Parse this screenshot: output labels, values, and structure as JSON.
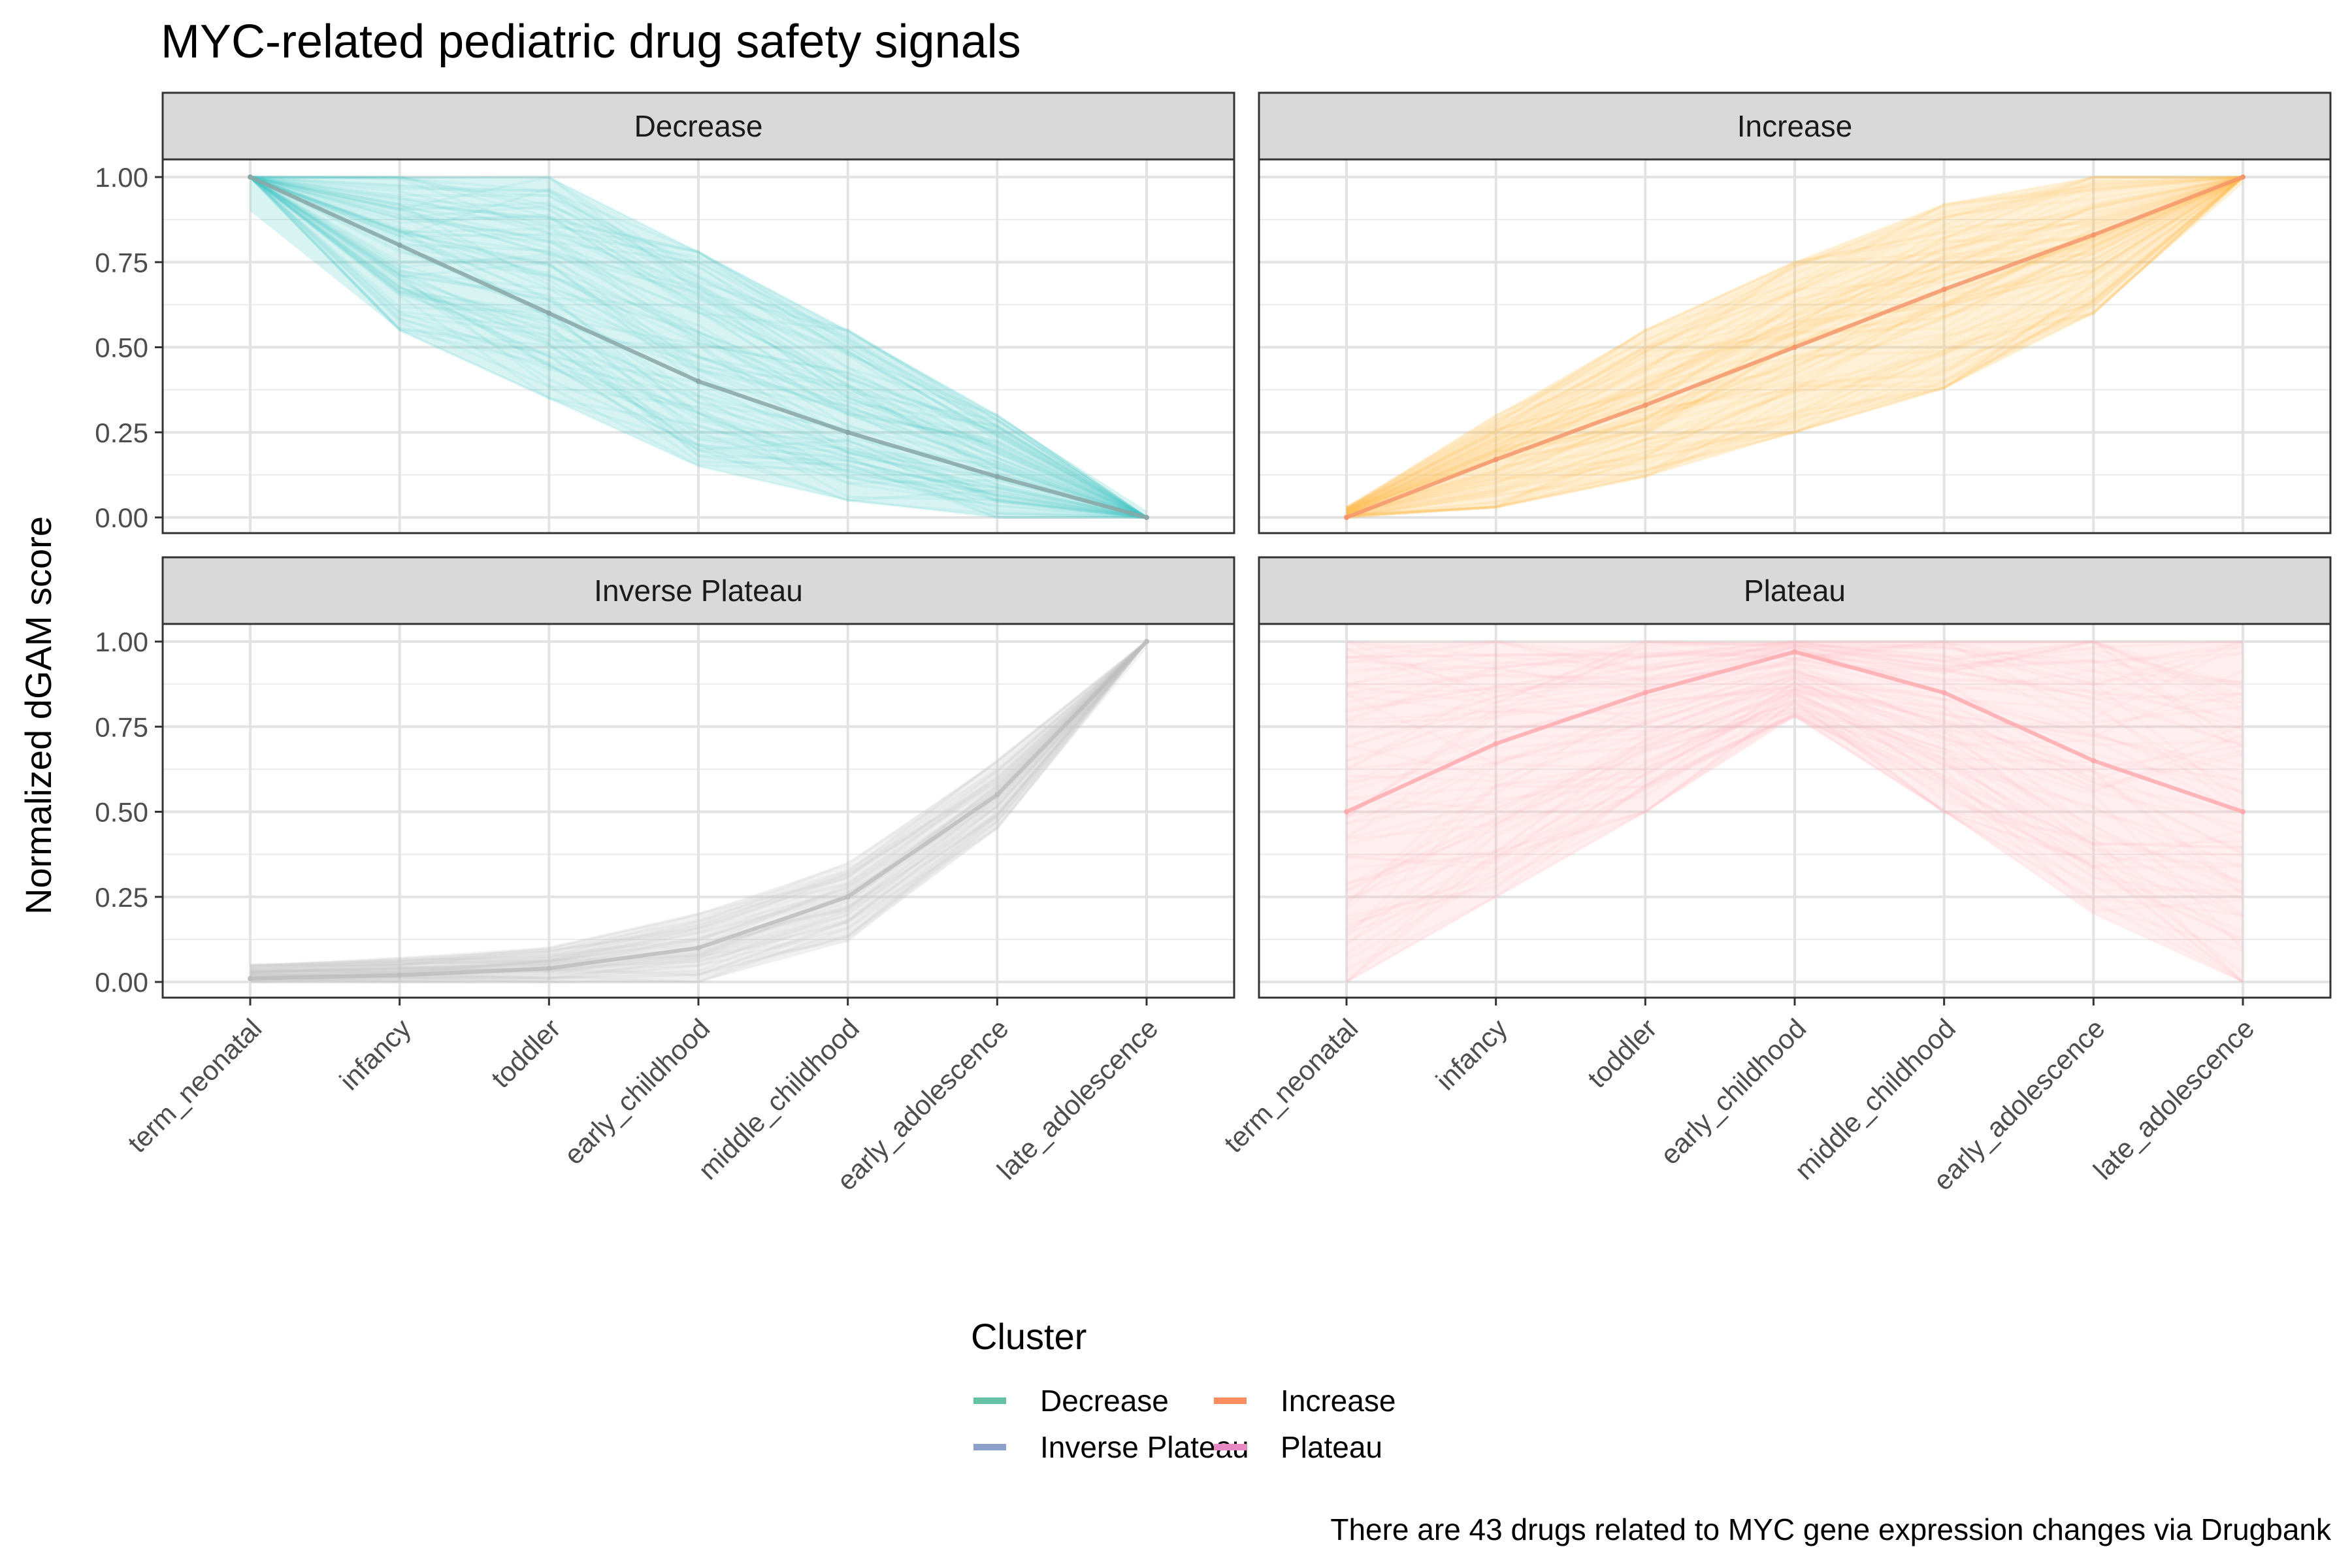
{
  "chart_data": {
    "type": "line",
    "title": "MYC-related pediatric drug safety signals",
    "ylabel": "Normalized dGAM score",
    "xlabel": "",
    "caption": "There are 43 drugs related to MYC gene expression changes via Drugbank",
    "ylim": [
      0,
      1
    ],
    "yticks": [
      "0.00",
      "0.25",
      "0.50",
      "0.75",
      "1.00"
    ],
    "categories": [
      "term_neonatal",
      "infancy",
      "toddler",
      "early_childhood",
      "middle_childhood",
      "early_adolescence",
      "late_adolescence"
    ],
    "grid": true,
    "legend": {
      "title": "Cluster",
      "placement": "bottom",
      "entries": [
        {
          "name": "Decrease",
          "color": "#66C2A5"
        },
        {
          "name": "Inverse Plateau",
          "color": "#8DA0CB"
        },
        {
          "name": "Increase",
          "color": "#FC8D62"
        },
        {
          "name": "Plateau",
          "color": "#E78AC3"
        }
      ]
    },
    "panels": [
      {
        "name": "Decrease",
        "line_color": "#48C9C4",
        "mean_color": "#8AA6A6",
        "mean": [
          1.0,
          0.8,
          0.6,
          0.4,
          0.25,
          0.12,
          0.0
        ],
        "band_low": [
          0.9,
          0.55,
          0.35,
          0.15,
          0.05,
          0.0,
          0.0
        ],
        "band_high": [
          1.0,
          1.0,
          1.0,
          0.78,
          0.55,
          0.3,
          0.02
        ]
      },
      {
        "name": "Increase",
        "line_color": "#FFC04D",
        "mean_color": "#F4956B",
        "mean": [
          0.0,
          0.17,
          0.33,
          0.5,
          0.67,
          0.83,
          1.0
        ],
        "band_low": [
          0.0,
          0.03,
          0.12,
          0.25,
          0.38,
          0.6,
          0.98
        ],
        "band_high": [
          0.03,
          0.3,
          0.55,
          0.75,
          0.92,
          1.0,
          1.0
        ]
      },
      {
        "name": "Inverse Plateau",
        "line_color": "#C7C7C7",
        "mean_color": "#BDBDBD",
        "mean": [
          0.01,
          0.02,
          0.04,
          0.1,
          0.25,
          0.55,
          1.0
        ],
        "band_low": [
          0.0,
          0.0,
          0.0,
          0.0,
          0.12,
          0.45,
          0.98
        ],
        "band_high": [
          0.05,
          0.07,
          0.1,
          0.2,
          0.35,
          0.65,
          1.0
        ]
      },
      {
        "name": "Plateau",
        "line_color": "#FFB6B9",
        "mean_color": "#FFAAAE",
        "mean": [
          0.5,
          0.7,
          0.85,
          0.97,
          0.85,
          0.65,
          0.5
        ],
        "band_low": [
          0.0,
          0.25,
          0.5,
          0.78,
          0.5,
          0.2,
          0.0
        ],
        "band_high": [
          1.0,
          1.0,
          1.0,
          1.0,
          1.0,
          1.0,
          1.0
        ]
      }
    ]
  }
}
